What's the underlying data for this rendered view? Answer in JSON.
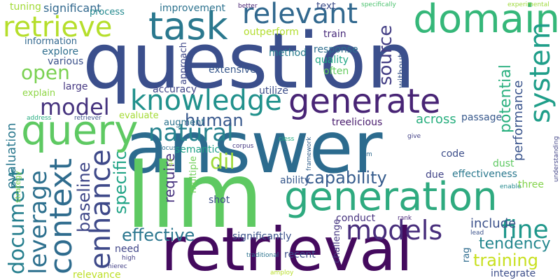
{
  "words": [
    {
      "text": "question",
      "color": "#3b4f8c"
    },
    {
      "text": "answer",
      "color": "#2c6b8e"
    },
    {
      "text": "llm",
      "color": "#5ec962"
    },
    {
      "text": "retrieval",
      "color": "#440a5e"
    },
    {
      "text": "generation",
      "color": "#2eaa7f"
    },
    {
      "text": "task",
      "color": "#2a788e"
    },
    {
      "text": "domain",
      "color": "#35b779"
    },
    {
      "text": "retrieve",
      "color": "#b5de2b"
    },
    {
      "text": "relevant",
      "color": "#31688e"
    },
    {
      "text": "query",
      "color": "#5ec962"
    },
    {
      "text": "generate",
      "color": "#482475"
    },
    {
      "text": "knowledge",
      "color": "#21918c"
    },
    {
      "text": "model",
      "color": "#46337e"
    },
    {
      "text": "natural",
      "color": "#26828e"
    },
    {
      "text": "system",
      "color": "#1f9e89"
    },
    {
      "text": "context",
      "color": "#2f6c8e"
    },
    {
      "text": "document",
      "color": "#277f8e"
    },
    {
      "text": "leverage",
      "color": "#2d708e"
    },
    {
      "text": "enhance",
      "color": "#3e4989"
    },
    {
      "text": "models",
      "color": "#472d7b"
    },
    {
      "text": "fine",
      "color": "#1f978b"
    },
    {
      "text": "dil",
      "color": "#9fda3a"
    },
    {
      "text": "capability",
      "color": "#365c8d"
    },
    {
      "text": "open",
      "color": "#7ad151"
    },
    {
      "text": "human",
      "color": "#38588c"
    },
    {
      "text": "baseline",
      "color": "#3f4788"
    },
    {
      "text": "specific",
      "color": "#20a386"
    },
    {
      "text": "effective",
      "color": "#2a768e"
    },
    {
      "text": "training",
      "color": "#c8e020"
    },
    {
      "text": "tendency",
      "color": "#24878e"
    },
    {
      "text": "evaluation",
      "color": "#2a788e"
    },
    {
      "text": "performance",
      "color": "#3a548c"
    },
    {
      "text": "potential",
      "color": "#2ab07f"
    },
    {
      "text": "source",
      "color": "#433e85"
    },
    {
      "text": "include",
      "color": "#3b518b"
    },
    {
      "text": "require",
      "color": "#46327e"
    },
    {
      "text": "across",
      "color": "#29af7f"
    },
    {
      "text": "treelicious",
      "color": "#481b6d"
    },
    {
      "text": "passage",
      "color": "#38598c"
    },
    {
      "text": "significant",
      "color": "#31688e"
    },
    {
      "text": "improvement",
      "color": "#2c728e"
    },
    {
      "text": "process",
      "color": "#23898e"
    },
    {
      "text": "tuning",
      "color": "#a2da37"
    },
    {
      "text": "better",
      "color": "#482173"
    },
    {
      "text": "text",
      "color": "#3d4d8a"
    },
    {
      "text": "specifically",
      "color": "#4ac16d"
    },
    {
      "text": "experimental",
      "color": "#9dd93b"
    },
    {
      "text": "information",
      "color": "#31678e"
    },
    {
      "text": "outperform",
      "color": "#b2dd2d"
    },
    {
      "text": "train",
      "color": "#472a7a"
    },
    {
      "text": "explore",
      "color": "#2e6e8e"
    },
    {
      "text": "approach",
      "color": "#3f4889"
    },
    {
      "text": "response",
      "color": "#2e6f8e"
    },
    {
      "text": "method",
      "color": "#287c8e"
    },
    {
      "text": "without",
      "color": "#3a548c"
    },
    {
      "text": "various",
      "color": "#3b528b"
    },
    {
      "text": "quality",
      "color": "#21a685"
    },
    {
      "text": "often",
      "color": "#65cb5e"
    },
    {
      "text": "extensive",
      "color": "#38588c"
    },
    {
      "text": "large",
      "color": "#453781"
    },
    {
      "text": "accuracy",
      "color": "#404688"
    },
    {
      "text": "utilize",
      "color": "#3d4e8a"
    },
    {
      "text": "explain",
      "color": "#8ed645"
    },
    {
      "text": "evaluate",
      "color": "#a5db36"
    },
    {
      "text": "augment",
      "color": "#2c738e"
    },
    {
      "text": "address",
      "color": "#27ad81"
    },
    {
      "text": "retriever",
      "color": "#3b528b"
    },
    {
      "text": "semantic",
      "color": "#1fa088"
    },
    {
      "text": "focus",
      "color": "#2d708e"
    },
    {
      "text": "corpus",
      "color": "#453882"
    },
    {
      "text": "ciess",
      "color": "#28ae80"
    },
    {
      "text": "give",
      "color": "#424086"
    },
    {
      "text": "framework",
      "color": "#34618d"
    },
    {
      "text": "aim",
      "color": "#2f6b8e"
    },
    {
      "text": "code",
      "color": "#3d4e8a"
    },
    {
      "text": "dust",
      "color": "#5ec962"
    },
    {
      "text": "understanding",
      "color": "#414487"
    },
    {
      "text": "qa",
      "color": "#a0da39"
    },
    {
      "text": "multiple",
      "color": "#70cf57"
    },
    {
      "text": "ability",
      "color": "#38598c"
    },
    {
      "text": "due",
      "color": "#414487"
    },
    {
      "text": "effectiveness",
      "color": "#2a788e"
    },
    {
      "text": "enable",
      "color": "#23898e"
    },
    {
      "text": "three",
      "color": "#83d34b"
    },
    {
      "text": "strategy",
      "color": "#7fd34e"
    },
    {
      "text": "shot",
      "color": "#3d4e8a"
    },
    {
      "text": "rank",
      "color": "#482878"
    },
    {
      "text": "lead",
      "color": "#3b528b"
    },
    {
      "text": "conduct",
      "color": "#46327e"
    },
    {
      "text": "challenge",
      "color": "#453781"
    },
    {
      "text": "significantly",
      "color": "#3b528b"
    },
    {
      "text": "recent",
      "color": "#3d4e8a"
    },
    {
      "text": "need",
      "color": "#404688"
    },
    {
      "text": "traditional",
      "color": "#2c738e"
    },
    {
      "text": "hierec",
      "color": "#424086"
    },
    {
      "text": "high",
      "color": "#433e85"
    },
    {
      "text": "rag",
      "color": "#2f6c8e"
    },
    {
      "text": "integrate",
      "color": "#3d4e8a"
    },
    {
      "text": "relevance",
      "color": "#bddf26"
    },
    {
      "text": "amploy",
      "color": "#b8de29"
    }
  ]
}
